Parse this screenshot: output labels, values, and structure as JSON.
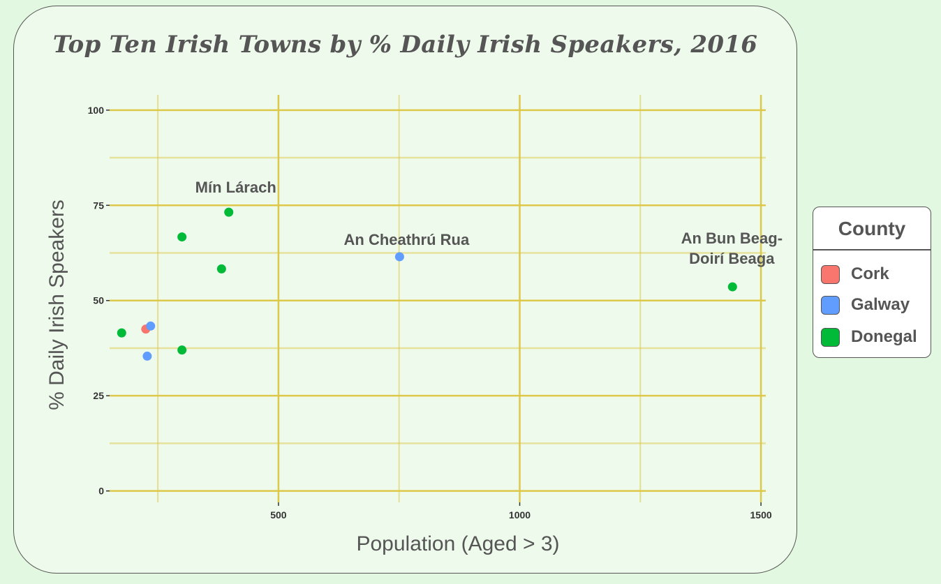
{
  "chart_data": {
    "type": "scatter",
    "title": "Top Ten Irish Towns by % Daily Irish Speakers, 2016",
    "xlabel": "Population (Aged > 3)",
    "ylabel": "% Daily Irish Speakers",
    "xlim": [
      150,
      1510
    ],
    "ylim": [
      -3,
      104
    ],
    "x_ticks": [
      500,
      1000,
      1500
    ],
    "x_tick_labels": [
      "500",
      "1000",
      "1500"
    ],
    "x_minor_gridlines": [
      250,
      750,
      1250
    ],
    "y_ticks": [
      0,
      25,
      50,
      75,
      100
    ],
    "y_tick_labels": [
      "0",
      "25",
      "50",
      "75",
      "100"
    ],
    "y_minor_gridlines": [
      12.5,
      37.5,
      62.5,
      87.5
    ],
    "grid": true,
    "grid_color": "#ddc84a",
    "legend": {
      "title": "County",
      "position": "right",
      "entries": [
        {
          "name": "Cork",
          "color": "#f8766d"
        },
        {
          "name": "Galway",
          "color": "#619cff"
        },
        {
          "name": "Donegal",
          "color": "#00ba38"
        }
      ]
    },
    "points": [
      {
        "x": 175,
        "y": 41.5,
        "county": "Donegal"
      },
      {
        "x": 225,
        "y": 42.5,
        "county": "Cork"
      },
      {
        "x": 235,
        "y": 43.3,
        "county": "Galway"
      },
      {
        "x": 228,
        "y": 35.4,
        "county": "Galway"
      },
      {
        "x": 300,
        "y": 37.0,
        "county": "Donegal"
      },
      {
        "x": 300,
        "y": 66.7,
        "county": "Donegal"
      },
      {
        "x": 382,
        "y": 58.3,
        "county": "Donegal"
      },
      {
        "x": 397,
        "y": 73.2,
        "county": "Donegal"
      },
      {
        "x": 751,
        "y": 61.5,
        "county": "Galway"
      },
      {
        "x": 1441,
        "y": 53.6,
        "county": "Donegal"
      }
    ],
    "annotations": [
      {
        "lines": [
          "Mín Lárach"
        ],
        "x": 397,
        "y": 73.2
      },
      {
        "lines": [
          "An Cheathrú Rua"
        ],
        "x": 751,
        "y": 61.5
      },
      {
        "lines": [
          "An Bun Beag-",
          "Doirí Beaga"
        ],
        "x": 1441,
        "y": 53.6
      }
    ]
  }
}
